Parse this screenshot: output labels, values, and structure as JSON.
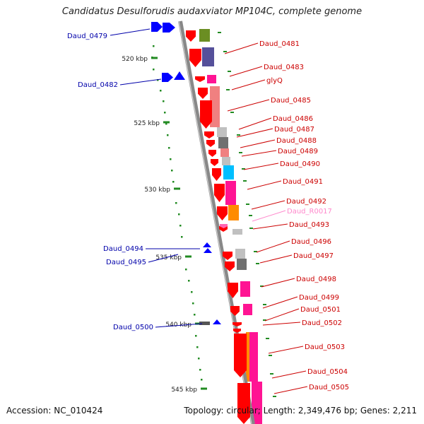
{
  "title": "Candidatus Desulforudis audaxviator MP104C, complete genome",
  "accession": "Accession: NC_010424",
  "topology": "Topology: circular; Length: 2,349,476 bp; Genes: 2,211",
  "colors": {
    "forward_gene": "#ff0000",
    "reverse_gene": "#0000ff",
    "forward_label": "#cc0000",
    "reverse_label": "#0000aa",
    "rna_label": "#ff88cc",
    "backbone": "#999999",
    "tick": "#228b22",
    "cog_olive": "#6b8e23",
    "cog_purple": "#55509a",
    "cog_magenta": "#ff1493",
    "cog_salmon": "#f08080",
    "cog_grey": "#c0c0c0",
    "cog_darkgrey": "#707070",
    "cog_cyan": "#00bfff",
    "cog_orange": "#ff8c00",
    "cog_pink": "#ff66b3"
  },
  "scale_labels": [
    "520 kbp",
    "525 kbp",
    "530 kbp",
    "535 kbp",
    "540 kbp",
    "545 kbp"
  ],
  "forward_labels": [
    "Daud_0481",
    "Daud_0483",
    "glyQ",
    "Daud_0485",
    "Daud_0486",
    "Daud_0487",
    "Daud_0488",
    "Daud_0489",
    "Daud_0490",
    "Daud_0491",
    "Daud_0492",
    "Daud_R0017",
    "Daud_0493",
    "Daud_0496",
    "Daud_0497",
    "Daud_0498",
    "Daud_0499",
    "Daud_0501",
    "Daud_0502",
    "Daud_0503",
    "Daud_0504",
    "Daud_0505"
  ],
  "reverse_labels": [
    "Daud_0479",
    "Daud_0482",
    "Daud_0494",
    "Daud_0495",
    "Daud_0500"
  ]
}
